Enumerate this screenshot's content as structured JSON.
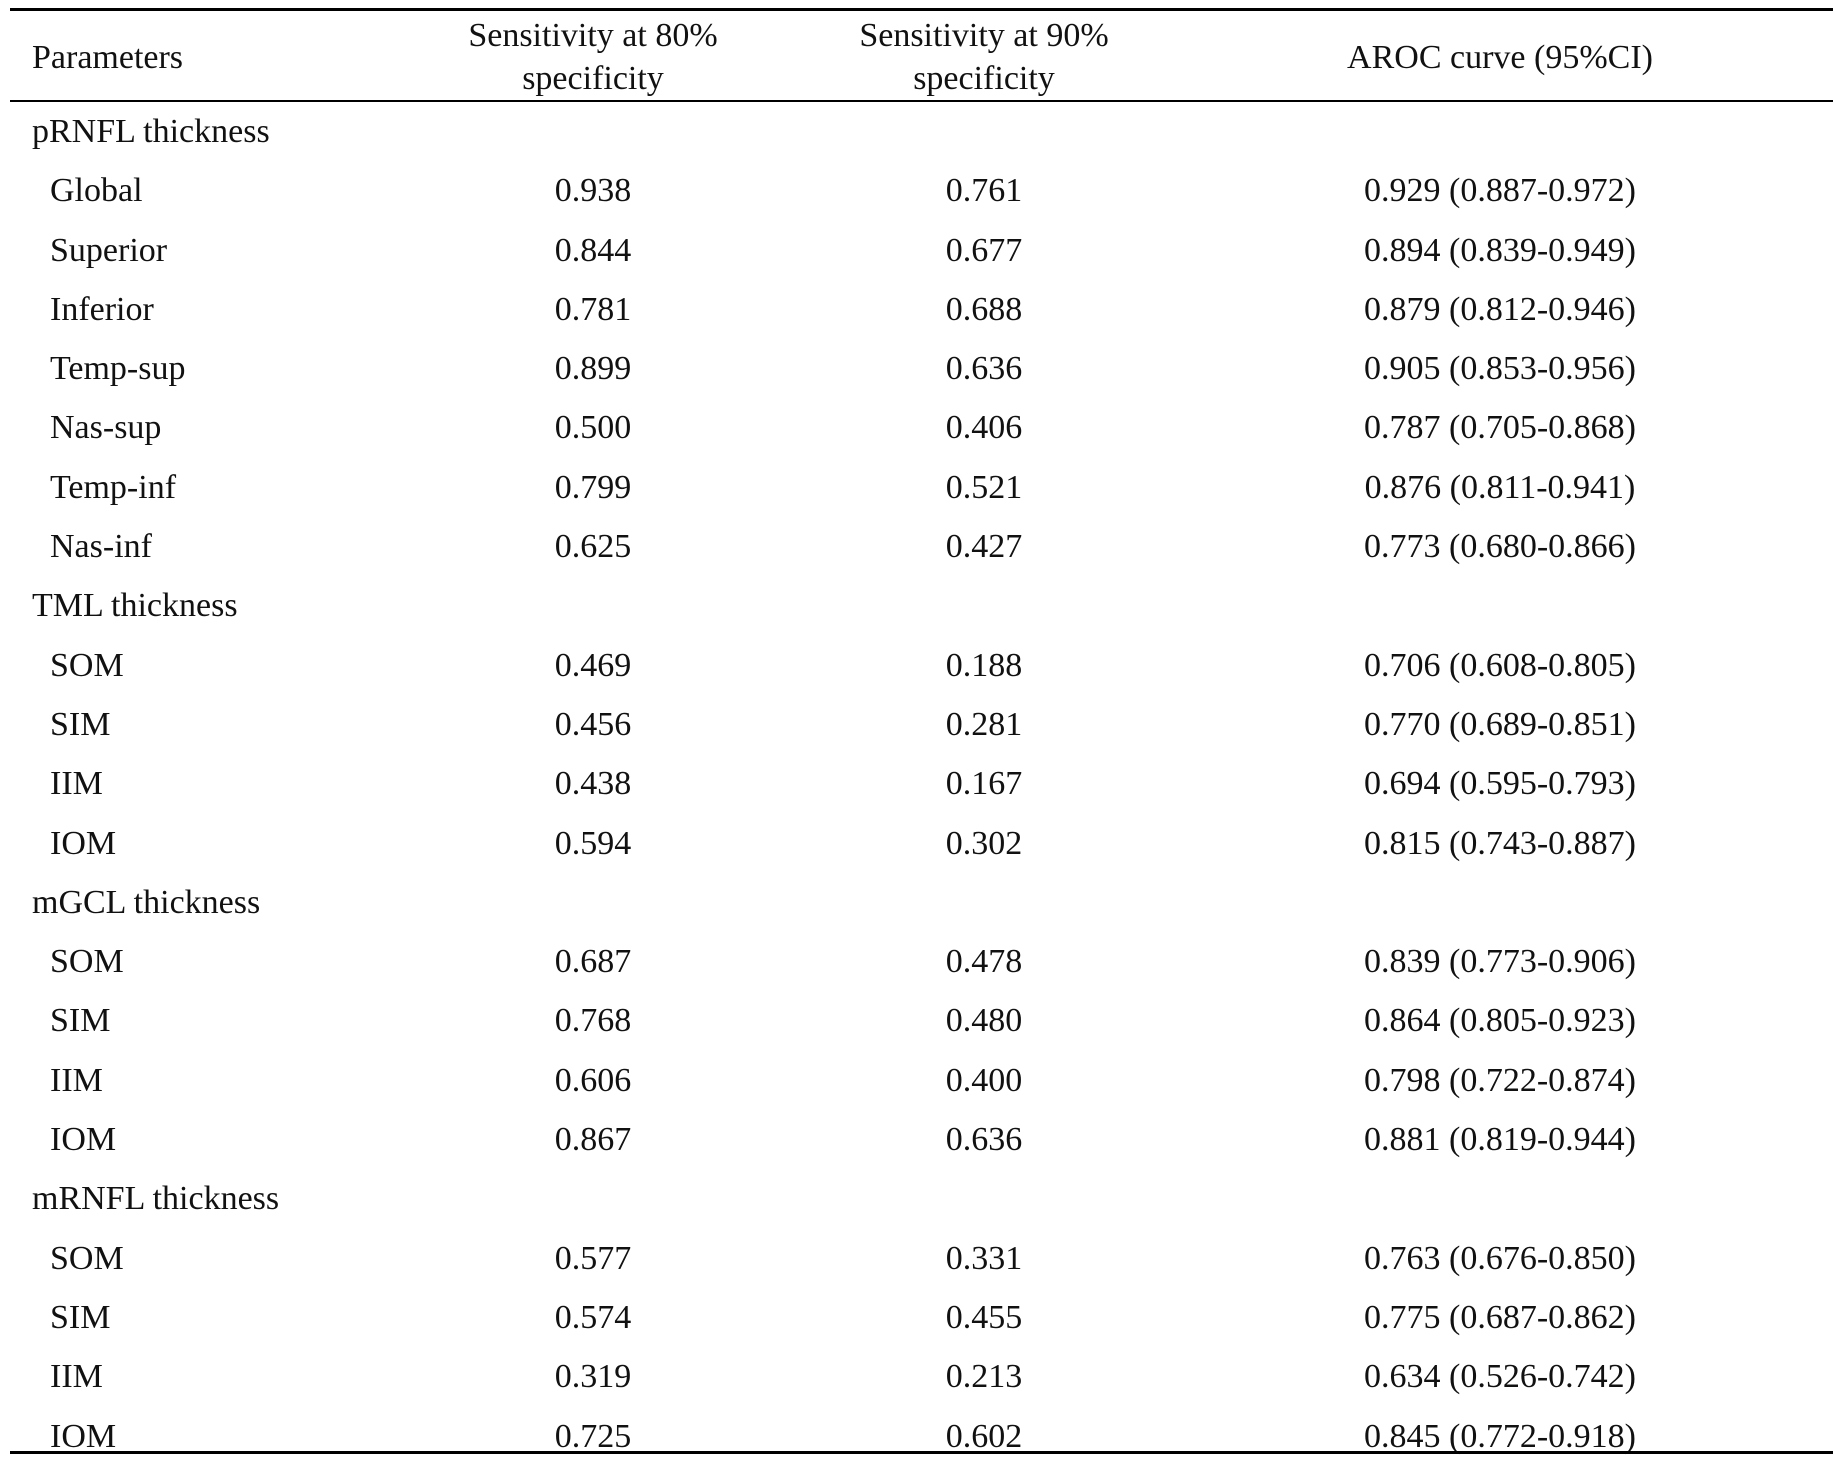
{
  "table": {
    "headers": [
      "Parameters",
      "Sensitivity at 80%\nspecificity",
      "Sensitivity at 90%\nspecificity",
      "AROC curve (95%CI)"
    ],
    "groups": [
      {
        "name": "pRNFL thickness",
        "rows": [
          [
            "Global",
            "0.938",
            "0.761",
            "0.929 (0.887-0.972)"
          ],
          [
            "Superior",
            "0.844",
            "0.677",
            "0.894 (0.839-0.949)"
          ],
          [
            "Inferior",
            "0.781",
            "0.688",
            "0.879 (0.812-0.946)"
          ],
          [
            "Temp-sup",
            "0.899",
            "0.636",
            "0.905 (0.853-0.956)"
          ],
          [
            "Nas-sup",
            "0.500",
            "0.406",
            "0.787 (0.705-0.868)"
          ],
          [
            "Temp-inf",
            "0.799",
            "0.521",
            "0.876 (0.811-0.941)"
          ],
          [
            "Nas-inf",
            "0.625",
            "0.427",
            "0.773 (0.680-0.866)"
          ]
        ]
      },
      {
        "name": "TML thickness",
        "rows": [
          [
            "SOM",
            "0.469",
            "0.188",
            "0.706 (0.608-0.805)"
          ],
          [
            "SIM",
            "0.456",
            "0.281",
            "0.770 (0.689-0.851)"
          ],
          [
            "IIM",
            "0.438",
            "0.167",
            "0.694 (0.595-0.793)"
          ],
          [
            "IOM",
            "0.594",
            "0.302",
            "0.815 (0.743-0.887)"
          ]
        ]
      },
      {
        "name": "mGCL thickness",
        "rows": [
          [
            "SOM",
            "0.687",
            "0.478",
            "0.839 (0.773-0.906)"
          ],
          [
            "SIM",
            "0.768",
            "0.480",
            "0.864 (0.805-0.923)"
          ],
          [
            "IIM",
            "0.606",
            "0.400",
            "0.798 (0.722-0.874)"
          ],
          [
            "IOM",
            "0.867",
            "0.636",
            "0.881 (0.819-0.944)"
          ]
        ]
      },
      {
        "name": "mRNFL thickness",
        "rows": [
          [
            "SOM",
            "0.577",
            "0.331",
            "0.763 (0.676-0.850)"
          ],
          [
            "SIM",
            "0.574",
            "0.455",
            "0.775 (0.687-0.862)"
          ],
          [
            "IIM",
            "0.319",
            "0.213",
            "0.634 (0.526-0.742)"
          ],
          [
            "IOM",
            "0.725",
            "0.602",
            "0.845 (0.772-0.918)"
          ]
        ]
      }
    ]
  }
}
